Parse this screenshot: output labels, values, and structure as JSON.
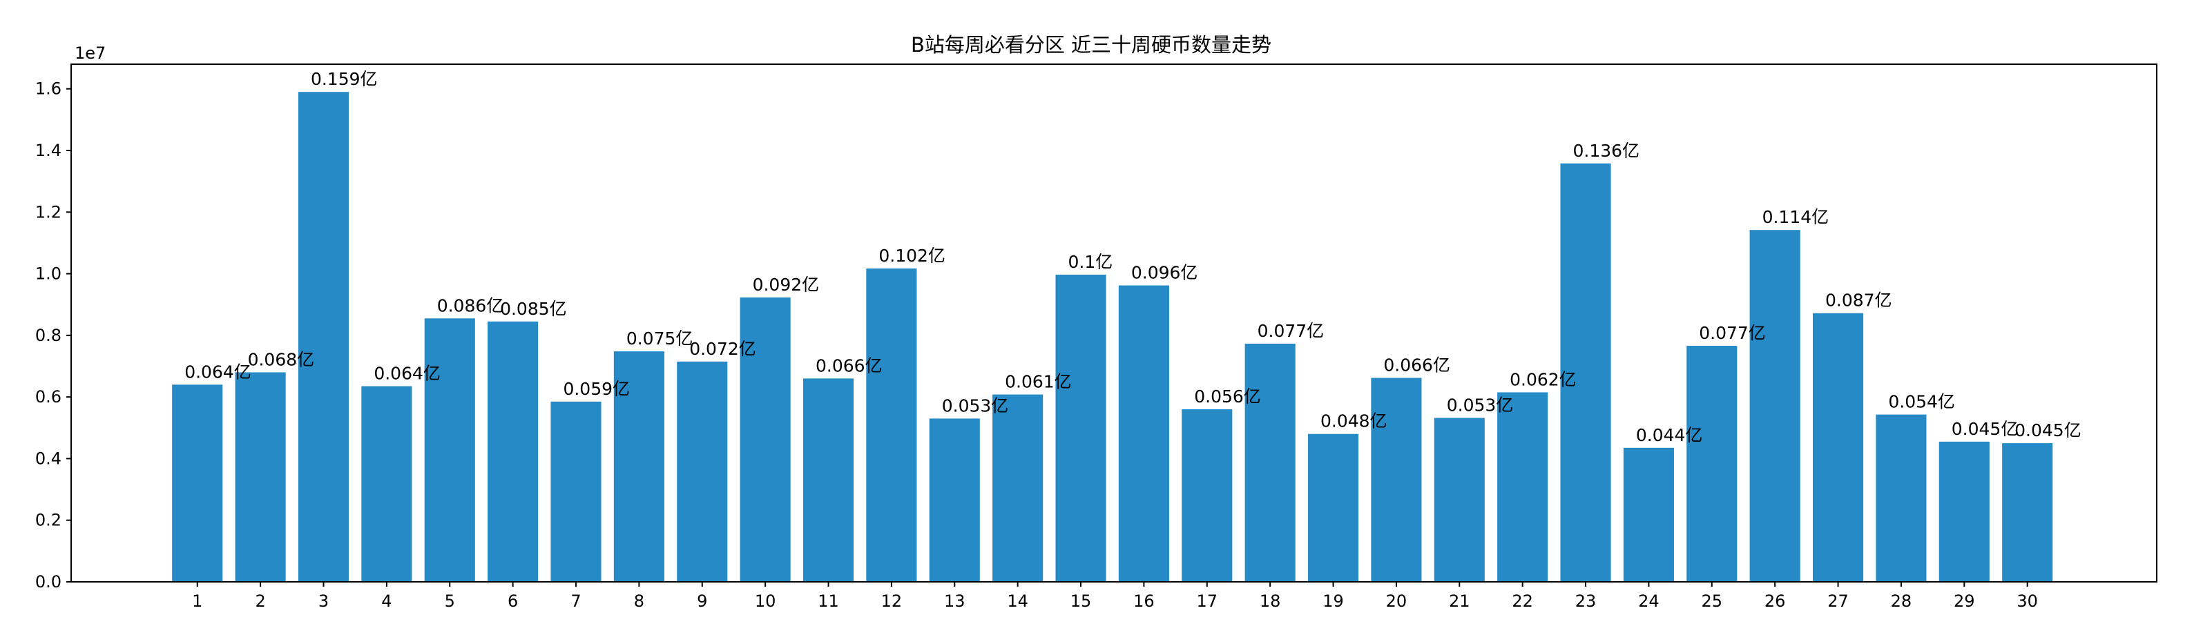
{
  "chart_data": {
    "type": "bar",
    "title": "B站每周必看分区 近三十周硬币数量走势",
    "xlabel": "",
    "ylabel": "",
    "y_offset_label": "1e7",
    "ylim": [
      0,
      16800000
    ],
    "yticks": [
      0,
      2000000,
      4000000,
      6000000,
      8000000,
      10000000,
      12000000,
      14000000,
      16000000
    ],
    "ytick_labels": [
      "0.0",
      "0.2",
      "0.4",
      "0.6",
      "0.8",
      "1.0",
      "1.2",
      "1.4",
      "1.6"
    ],
    "grid": false,
    "bar_color": "#258ac5",
    "categories": [
      "1",
      "2",
      "3",
      "4",
      "5",
      "6",
      "7",
      "8",
      "9",
      "10",
      "11",
      "12",
      "13",
      "14",
      "15",
      "16",
      "17",
      "18",
      "19",
      "20",
      "21",
      "22",
      "23",
      "24",
      "25",
      "26",
      "27",
      "28",
      "29",
      "30"
    ],
    "values": [
      6400000,
      6800000,
      15900000,
      6350000,
      8550000,
      8450000,
      5850000,
      7480000,
      7150000,
      9230000,
      6600000,
      10170000,
      5300000,
      6080000,
      9970000,
      9620000,
      5600000,
      7730000,
      4800000,
      6620000,
      5320000,
      6150000,
      13580000,
      4350000,
      7660000,
      11420000,
      8720000,
      5430000,
      4550000,
      4500000
    ],
    "data_labels": [
      "0.064亿",
      "0.068亿",
      "0.159亿",
      "0.064亿",
      "0.086亿",
      "0.085亿",
      "0.059亿",
      "0.075亿",
      "0.072亿",
      "0.092亿",
      "0.066亿",
      "0.102亿",
      "0.053亿",
      "0.061亿",
      "0.1亿",
      "0.096亿",
      "0.056亿",
      "0.077亿",
      "0.048亿",
      "0.066亿",
      "0.053亿",
      "0.062亿",
      "0.136亿",
      "0.044亿",
      "0.077亿",
      "0.114亿",
      "0.087亿",
      "0.054亿",
      "0.045亿",
      "0.045亿"
    ]
  }
}
